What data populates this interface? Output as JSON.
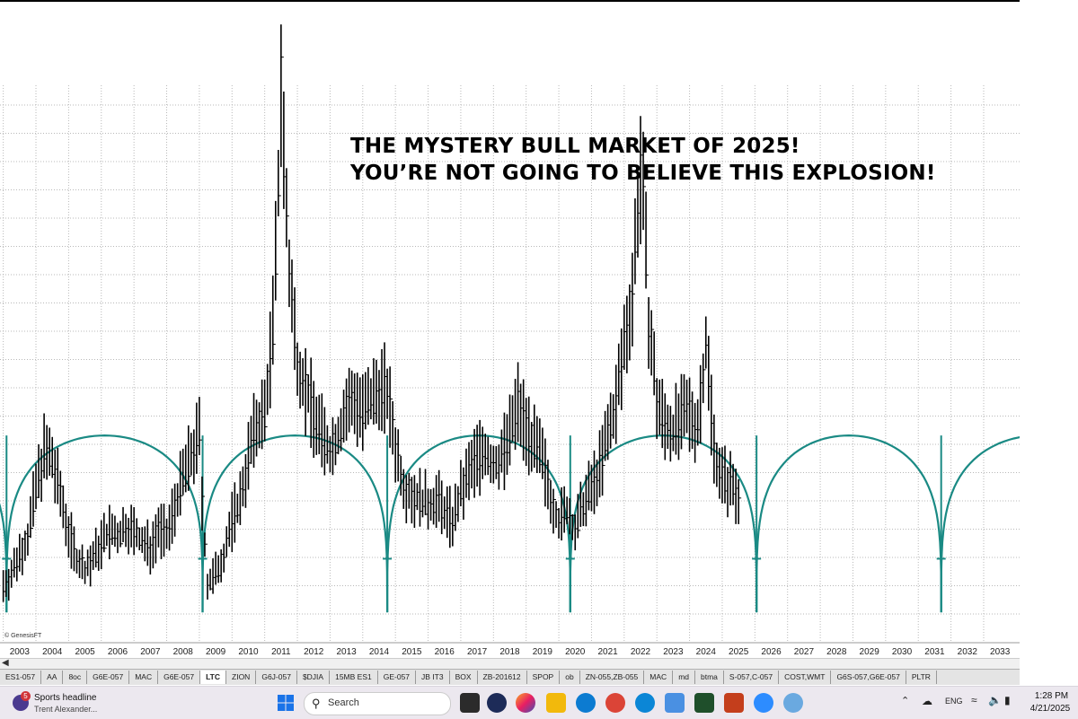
{
  "headline": {
    "line1": "THE  MYSTERY BULL MARKET OF 2025!",
    "line2": "YOU’RE NOT GOING TO BELIEVE THIS EXPLOSION!"
  },
  "watermark": "© GenesisFT",
  "colors": {
    "cycle": "#1a8a84",
    "bars": "#000000",
    "grid": "#b8b8b8"
  },
  "chart_data": {
    "type": "bar",
    "subtype": "OHLC price bars with cycle overlay",
    "title": "",
    "xlabel": "",
    "ylabel": "",
    "x_ticks": [
      "2003",
      "2004",
      "2005",
      "2006",
      "2007",
      "2008",
      "2009",
      "2010",
      "2011",
      "2012",
      "2013",
      "2014",
      "2015",
      "2016",
      "2017",
      "2018",
      "2019",
      "2020",
      "2021",
      "2022",
      "2023",
      "2024",
      "2025",
      "2026",
      "2027",
      "2028",
      "2029",
      "2030",
      "2031",
      "2032",
      "2033"
    ],
    "xlim": [
      2002.4,
      2033.6
    ],
    "ylim": [
      0,
      100
    ],
    "price_series": [
      [
        2002.5,
        10
      ],
      [
        2002.75,
        12
      ],
      [
        2003.0,
        16
      ],
      [
        2003.25,
        19
      ],
      [
        2003.5,
        28
      ],
      [
        2003.75,
        35
      ],
      [
        2004.0,
        33
      ],
      [
        2004.25,
        27
      ],
      [
        2004.5,
        20
      ],
      [
        2004.75,
        15
      ],
      [
        2005.0,
        13
      ],
      [
        2005.25,
        15
      ],
      [
        2005.5,
        18
      ],
      [
        2005.75,
        20
      ],
      [
        2006.0,
        19
      ],
      [
        2006.25,
        21
      ],
      [
        2006.5,
        20
      ],
      [
        2006.75,
        18
      ],
      [
        2007.0,
        17
      ],
      [
        2007.25,
        21
      ],
      [
        2007.5,
        19
      ],
      [
        2007.75,
        25
      ],
      [
        2008.0,
        30
      ],
      [
        2008.25,
        34
      ],
      [
        2008.5,
        38
      ],
      [
        2008.6,
        24
      ],
      [
        2008.75,
        10
      ],
      [
        2009.0,
        12
      ],
      [
        2009.25,
        16
      ],
      [
        2009.5,
        22
      ],
      [
        2009.75,
        26
      ],
      [
        2010.0,
        34
      ],
      [
        2010.25,
        40
      ],
      [
        2010.5,
        42
      ],
      [
        2010.75,
        58
      ],
      [
        2010.9,
        80
      ],
      [
        2011.0,
        105
      ],
      [
        2011.1,
        88
      ],
      [
        2011.25,
        68
      ],
      [
        2011.5,
        52
      ],
      [
        2011.75,
        47
      ],
      [
        2012.0,
        42
      ],
      [
        2012.25,
        38
      ],
      [
        2012.5,
        35
      ],
      [
        2012.75,
        38
      ],
      [
        2013.0,
        43
      ],
      [
        2013.25,
        45
      ],
      [
        2013.5,
        42
      ],
      [
        2013.75,
        44
      ],
      [
        2014.0,
        47
      ],
      [
        2014.25,
        46
      ],
      [
        2014.5,
        36
      ],
      [
        2014.75,
        29
      ],
      [
        2015.0,
        27
      ],
      [
        2015.25,
        26
      ],
      [
        2015.5,
        25
      ],
      [
        2015.75,
        26
      ],
      [
        2016.0,
        24
      ],
      [
        2016.25,
        22
      ],
      [
        2016.5,
        27
      ],
      [
        2016.75,
        31
      ],
      [
        2017.0,
        34
      ],
      [
        2017.25,
        35
      ],
      [
        2017.5,
        32
      ],
      [
        2017.75,
        34
      ],
      [
        2018.0,
        38
      ],
      [
        2018.25,
        44
      ],
      [
        2018.5,
        40
      ],
      [
        2018.75,
        36
      ],
      [
        2019.0,
        33
      ],
      [
        2019.25,
        27
      ],
      [
        2019.5,
        22
      ],
      [
        2019.75,
        24
      ],
      [
        2020.0,
        20
      ],
      [
        2020.25,
        25
      ],
      [
        2020.5,
        28
      ],
      [
        2020.75,
        32
      ],
      [
        2021.0,
        38
      ],
      [
        2021.25,
        44
      ],
      [
        2021.5,
        55
      ],
      [
        2021.75,
        65
      ],
      [
        2022.0,
        88
      ],
      [
        2022.1,
        80
      ],
      [
        2022.25,
        60
      ],
      [
        2022.5,
        44
      ],
      [
        2022.75,
        40
      ],
      [
        2023.0,
        39
      ],
      [
        2023.25,
        41
      ],
      [
        2023.5,
        42
      ],
      [
        2023.75,
        40
      ],
      [
        2024.0,
        55
      ],
      [
        2024.1,
        48
      ],
      [
        2024.25,
        36
      ],
      [
        2024.5,
        30
      ],
      [
        2024.75,
        29
      ],
      [
        2025.0,
        27
      ]
    ],
    "cycle_lows": [
      2002.6,
      2008.6,
      2014.25,
      2019.85,
      2025.55,
      2031.2
    ],
    "cycle_peak_level": 38,
    "cycle_trough_level": 5
  },
  "tabs": [
    "ES1-057",
    "AA",
    "8oc",
    "G6E-057",
    "MAC",
    "G6E-057",
    "LTC",
    "ZION",
    "G6J-057",
    "$DJIA",
    "15MB ES1",
    "GE-057",
    "JB IT3",
    "BOX",
    "ZB-201612",
    "SPOP",
    "ob",
    "ZN-055,ZB-055",
    "MAC",
    "md",
    "btma",
    "S-057,C-057",
    "COST,WMT",
    "G6S-057,G6E-057",
    "PLTR"
  ],
  "active_tab": "LTC",
  "taskbar": {
    "news_title": "Sports headline",
    "news_sub": "Trent Alexander...",
    "news_badge": "5",
    "search_label": "Search",
    "lang": "ENG",
    "time": "1:28 PM",
    "date": "4/21/2025"
  },
  "icons": {
    "search": "search-icon",
    "windows": "windows-start-icon",
    "wifi": "wifi-icon",
    "volume": "volume-icon",
    "battery": "battery-icon"
  }
}
